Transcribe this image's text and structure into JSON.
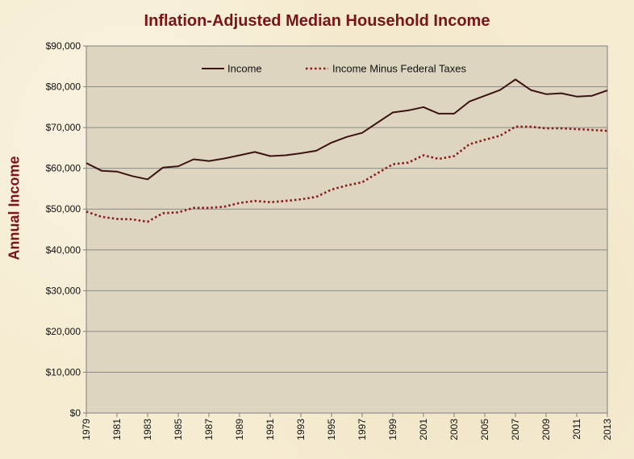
{
  "chart_data": {
    "type": "line",
    "title": "Inflation-Adjusted Median Household Income",
    "xlabel": "",
    "ylabel": "Annual Income",
    "xlim": [
      1979,
      2013
    ],
    "ylim": [
      0,
      90000
    ],
    "y_ticks": [
      0,
      10000,
      20000,
      30000,
      40000,
      50000,
      60000,
      70000,
      80000,
      90000
    ],
    "y_tick_labels": [
      "$0",
      "$10,000",
      "$20,000",
      "$30,000",
      "$40,000",
      "$50,000",
      "$60,000",
      "$70,000",
      "$80,000",
      "$90,000"
    ],
    "x_ticks": [
      1979,
      1981,
      1983,
      1985,
      1987,
      1989,
      1991,
      1993,
      1995,
      1997,
      1999,
      2001,
      2003,
      2005,
      2007,
      2009,
      2011,
      2013
    ],
    "x_tick_labels": [
      "1979",
      "1981",
      "1983",
      "1985",
      "1987",
      "1989",
      "1991",
      "1993",
      "1995",
      "1997",
      "1999",
      "2001",
      "2003",
      "2005",
      "2007",
      "2009",
      "2011",
      "2013"
    ],
    "grid": true,
    "legend_position": "top",
    "x": [
      1979,
      1980,
      1981,
      1982,
      1983,
      1984,
      1985,
      1986,
      1987,
      1988,
      1989,
      1990,
      1991,
      1992,
      1993,
      1994,
      1995,
      1996,
      1997,
      1998,
      1999,
      2000,
      2001,
      2002,
      2003,
      2004,
      2005,
      2006,
      2007,
      2008,
      2009,
      2010,
      2011,
      2012,
      2013
    ],
    "series": [
      {
        "name": "Income",
        "color": "#3b1412",
        "style": "solid",
        "values": [
          61300,
          59400,
          59200,
          58100,
          57300,
          60200,
          60500,
          62200,
          61800,
          62400,
          63200,
          64000,
          63000,
          63200,
          63700,
          64300,
          66300,
          67700,
          68700,
          71200,
          73700,
          74200,
          75000,
          73400,
          73400,
          76400,
          77800,
          79200,
          81800,
          79200,
          78200,
          78400,
          77600,
          77800,
          79100
        ]
      },
      {
        "name": "Income Minus Federal Taxes",
        "color": "#8b1a1a",
        "style": "dotted",
        "values": [
          49400,
          48100,
          47600,
          47500,
          46900,
          49000,
          49200,
          50300,
          50300,
          50600,
          51500,
          52000,
          51700,
          52000,
          52400,
          53000,
          54800,
          55800,
          56600,
          58800,
          61000,
          61400,
          63200,
          62300,
          63000,
          65900,
          67000,
          68000,
          70200,
          70200,
          69800,
          69800,
          69600,
          69400,
          69200
        ]
      }
    ]
  }
}
